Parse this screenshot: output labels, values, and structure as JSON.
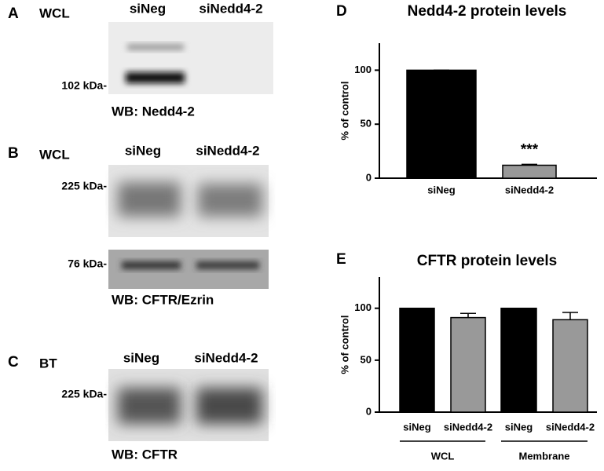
{
  "panels": [
    {
      "letter": "A",
      "sample": "WCL",
      "lanes": [
        "siNeg",
        "siNedd4-2"
      ],
      "markers": [
        "102 kDa-"
      ],
      "wb": "WB: Nedd4-2"
    },
    {
      "letter": "B",
      "sample": "WCL",
      "lanes": [
        "siNeg",
        "siNedd4-2"
      ],
      "markers": [
        "225 kDa-",
        "76 kDa-"
      ],
      "wb": "WB: CFTR/Ezrin"
    },
    {
      "letter": "C",
      "sample": "BT",
      "lanes": [
        "siNeg",
        "siNedd4-2"
      ],
      "markers": [
        "225 kDa-"
      ],
      "wb": "WB: CFTR"
    }
  ],
  "chart_data": [
    {
      "type": "bar",
      "panel": "D",
      "title": "Nedd4-2 protein levels",
      "y_label": "% of control",
      "categories": [
        "siNeg",
        "siNedd4-2"
      ],
      "values": [
        100,
        12
      ],
      "errors": [
        0,
        0.8
      ],
      "colors": [
        "#000000",
        "#999999"
      ],
      "annotation": "***",
      "ylim": [
        0,
        125
      ],
      "yticks": [
        0,
        50,
        100
      ]
    },
    {
      "type": "bar",
      "panel": "E",
      "title": "CFTR protein levels",
      "y_label": "% of control",
      "categories": [
        "siNeg",
        "siNedd4-2",
        "siNeg",
        "siNedd4-2"
      ],
      "values": [
        100,
        91,
        100,
        89
      ],
      "errors": [
        0,
        4,
        0,
        7
      ],
      "colors": [
        "#000000",
        "#999999",
        "#000000",
        "#999999"
      ],
      "groups": [
        "WCL",
        "Membrane"
      ],
      "ylim": [
        0,
        130
      ],
      "yticks": [
        0,
        50,
        100
      ]
    }
  ]
}
